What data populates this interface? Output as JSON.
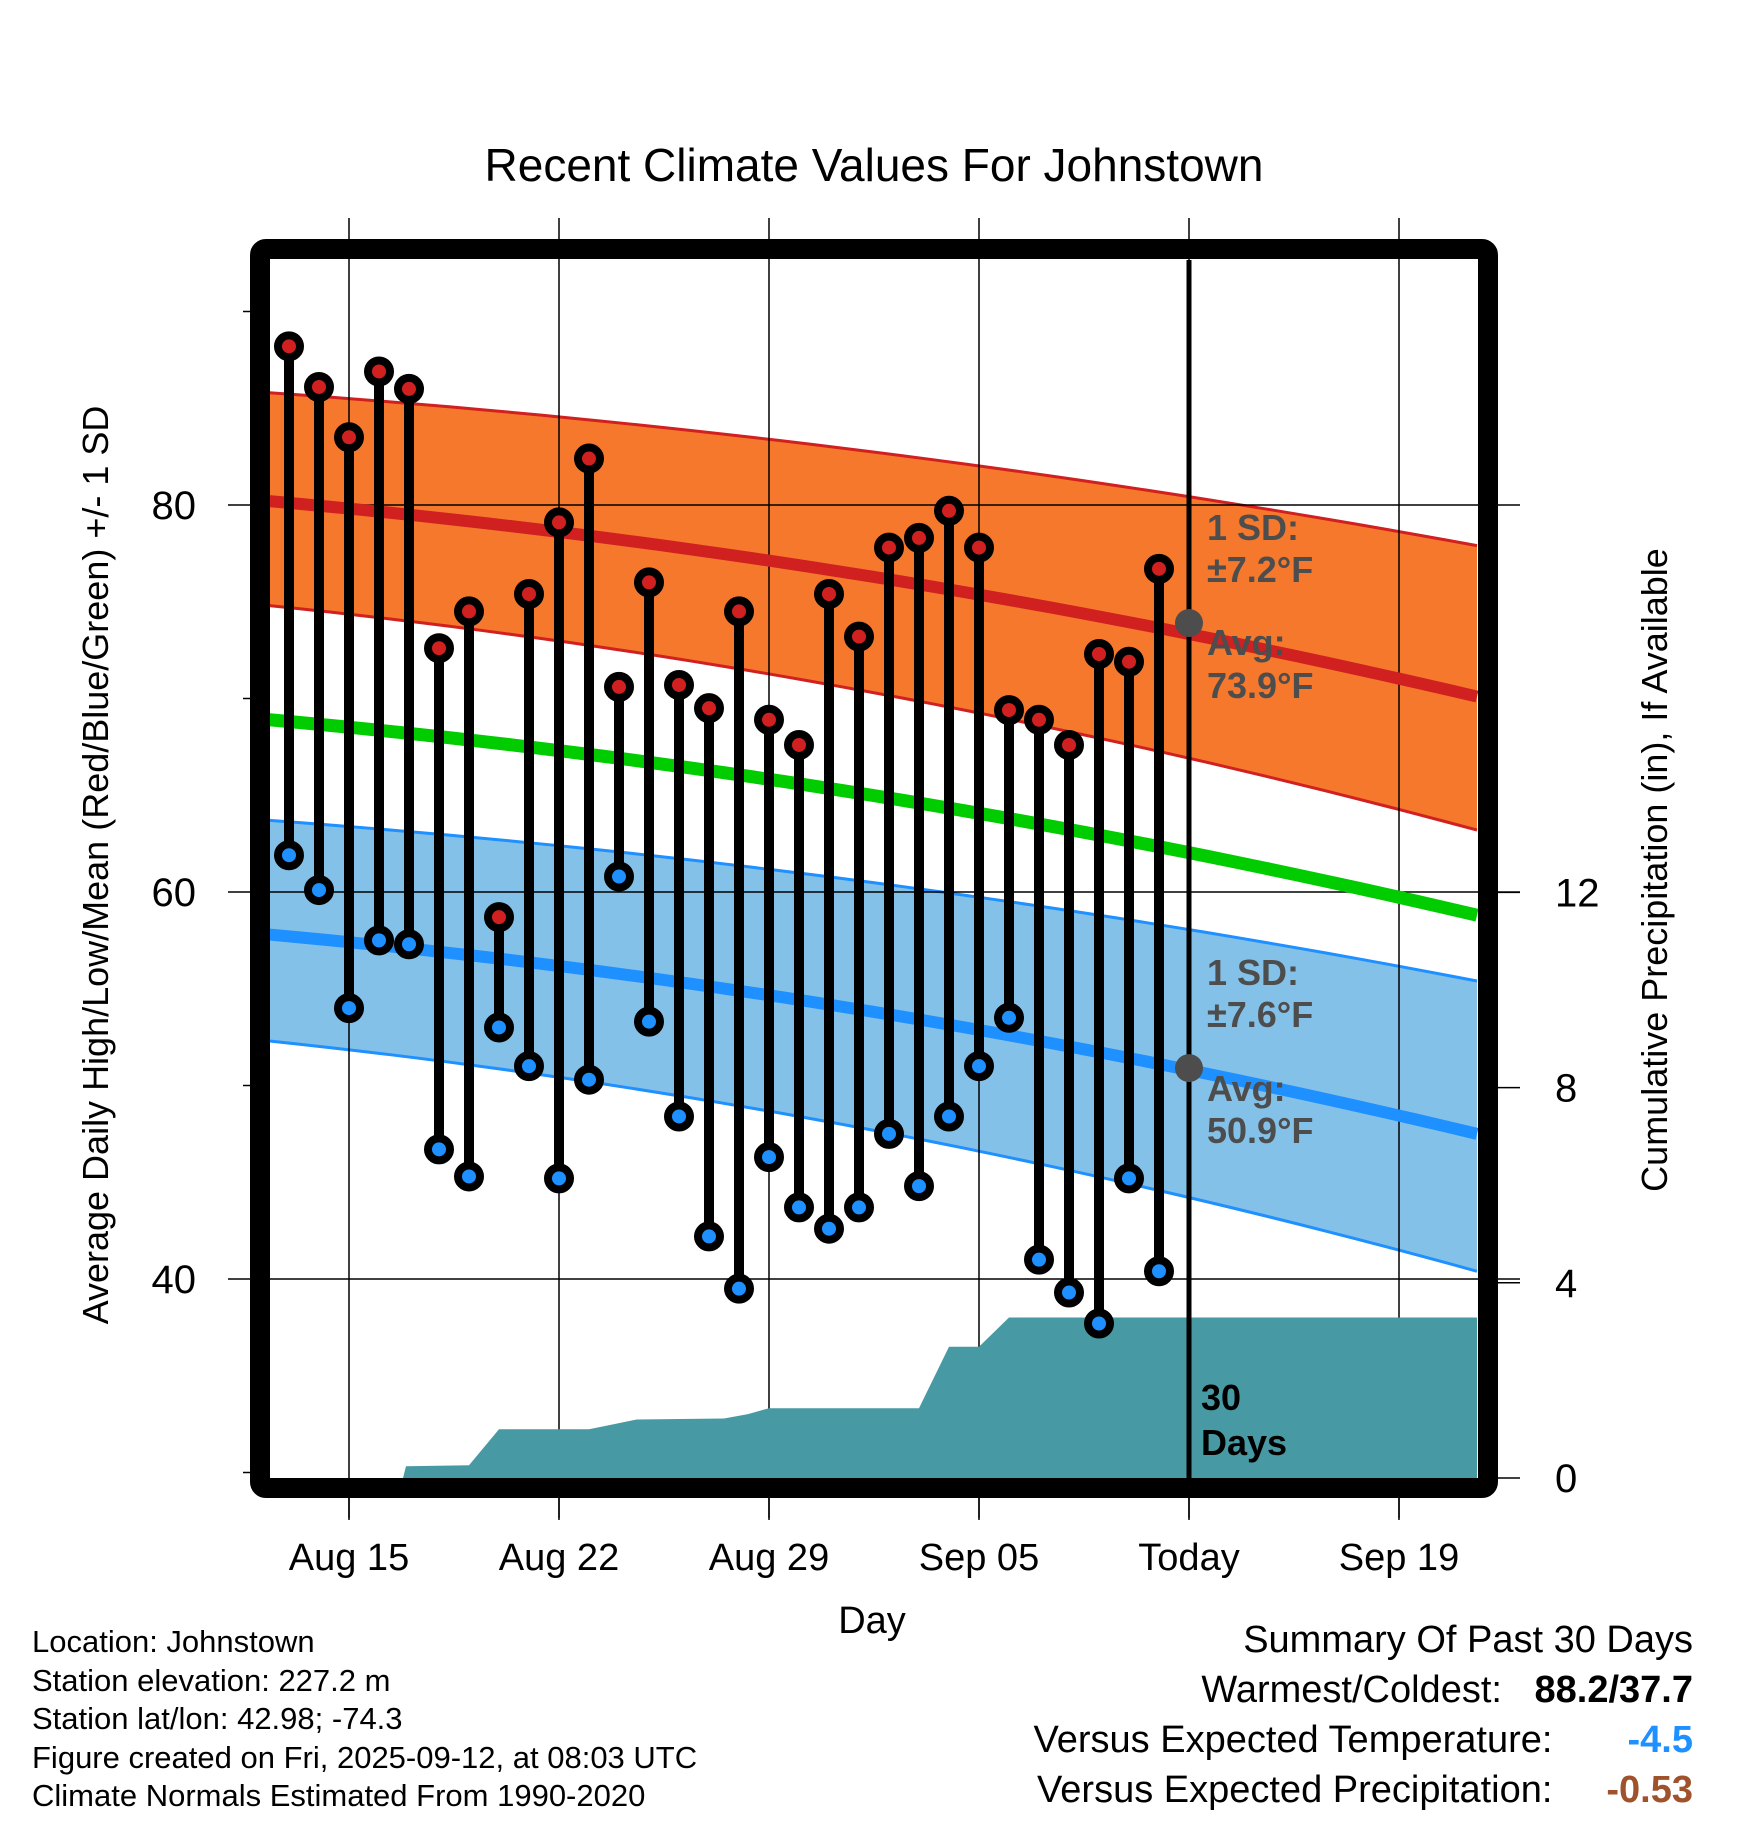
{
  "chart_data": {
    "type": "line",
    "title": "Recent Climate Values For Johnstown",
    "xlabel": "Day",
    "ylabel": "Average Daily High/Low/Mean (Red/Blue/Green) +/- 1 SD",
    "ylabel_right": "Cumulative Precipitation (in), If Available",
    "ylim": [
      29.7,
      92.7
    ],
    "ylim_right": [
      0,
      24.4
    ],
    "y_ticks": [
      40,
      60,
      80
    ],
    "y_minor_ticks": [
      30,
      50,
      70,
      90
    ],
    "y_right_ticks": [
      0,
      4,
      8,
      12
    ],
    "x_ticks": [
      {
        "day": 0,
        "label": "Aug 15"
      },
      {
        "day": 7,
        "label": "Aug 22"
      },
      {
        "day": 14,
        "label": "Aug 29"
      },
      {
        "day": 21,
        "label": "Sep 05"
      },
      {
        "day": 28,
        "label": "Today"
      },
      {
        "day": 35,
        "label": "Sep 19"
      }
    ],
    "x_range_days": [
      -2.65,
      37.6
    ],
    "today_day": 28,
    "grid": true,
    "days": [
      "Aug 13",
      "Aug 14",
      "Aug 15",
      "Aug 16",
      "Aug 17",
      "Aug 18",
      "Aug 19",
      "Aug 20",
      "Aug 21",
      "Aug 22",
      "Aug 23",
      "Aug 24",
      "Aug 25",
      "Aug 26",
      "Aug 27",
      "Aug 28",
      "Aug 29",
      "Aug 30",
      "Aug 31",
      "Sep 01",
      "Sep 02",
      "Sep 03",
      "Sep 04",
      "Sep 05",
      "Sep 06",
      "Sep 07",
      "Sep 08",
      "Sep 09",
      "Sep 10",
      "Sep 11"
    ],
    "day_offsets": [
      -2,
      -1,
      0,
      1,
      2,
      3,
      4,
      5,
      6,
      7,
      8,
      9,
      10,
      11,
      12,
      13,
      14,
      15,
      16,
      17,
      18,
      19,
      20,
      21,
      22,
      23,
      24,
      25,
      26,
      27
    ],
    "series": [
      {
        "name": "Daily High",
        "color": "#d02020",
        "values": [
          88.2,
          86.1,
          83.5,
          86.9,
          86.0,
          72.6,
          74.5,
          58.7,
          75.4,
          79.1,
          82.4,
          70.6,
          76.0,
          70.7,
          69.5,
          74.5,
          68.9,
          67.6,
          75.4,
          73.2,
          77.8,
          78.3,
          79.7,
          77.8,
          69.4,
          68.9,
          67.6,
          72.3,
          71.9,
          76.7
        ]
      },
      {
        "name": "Daily Low",
        "color": "#1e90ff",
        "values": [
          61.9,
          60.1,
          54.0,
          57.5,
          57.3,
          46.7,
          45.3,
          53.0,
          51.0,
          45.2,
          50.3,
          60.8,
          53.3,
          48.4,
          42.2,
          39.5,
          46.3,
          43.7,
          42.6,
          43.7,
          47.5,
          44.8,
          48.4,
          51.0,
          53.5,
          41.0,
          39.3,
          37.7,
          45.2,
          40.4
        ]
      }
    ],
    "normals": {
      "x_days": [
        -2.65,
        37.6
      ],
      "high_avg": {
        "color": "#d02020",
        "values": [
          80.2,
          70.1
        ]
      },
      "high_upper": {
        "values": [
          85.8,
          77.9
        ]
      },
      "high_lower": {
        "values": [
          74.8,
          63.2
        ]
      },
      "high_band_color": "#f5782d",
      "mean": {
        "color": "#00cc00",
        "values": [
          68.9,
          58.8
        ]
      },
      "low_avg": {
        "color": "#1e90ff",
        "values": [
          57.8,
          47.5
        ]
      },
      "low_upper": {
        "values": [
          63.7,
          55.4
        ]
      },
      "low_lower": {
        "values": [
          52.3,
          40.4
        ]
      },
      "low_band_color": "#84c1e8"
    },
    "precipitation": {
      "color": "#4799a3",
      "points": [
        [
          -2.65,
          0
        ],
        [
          1.8,
          0
        ],
        [
          1.9,
          0.24
        ],
        [
          4.0,
          0.26
        ],
        [
          5.0,
          1.0
        ],
        [
          8.0,
          1.0
        ],
        [
          8.8,
          1.1
        ],
        [
          9.6,
          1.2
        ],
        [
          12.5,
          1.22
        ],
        [
          13.3,
          1.31
        ],
        [
          14.0,
          1.43
        ],
        [
          19.0,
          1.43
        ],
        [
          20.0,
          2.69
        ],
        [
          21.0,
          2.69
        ],
        [
          22.0,
          3.29
        ],
        [
          37.6,
          3.29
        ],
        [
          37.6,
          0
        ]
      ]
    },
    "annotations": {
      "high_sd": "1 SD:",
      "high_sd_val": "±7.2°F",
      "high_avg": "Avg:",
      "high_avg_val": "73.9°F",
      "low_sd": "1 SD:",
      "low_sd_val": "±7.6°F",
      "low_avg": "Avg:",
      "low_avg_val": "50.9°F",
      "today_high_avg": 73.9,
      "today_low_avg": 50.9,
      "period_line1": "30",
      "period_line2": "Days",
      "annotation_color": "#4d4d4d"
    }
  },
  "info": {
    "location": "Location: Johnstown",
    "elevation": "Station elevation: 227.2 m",
    "latlon": "Station lat/lon: 42.98; -74.3",
    "created": "Figure created on Fri, 2025-09-12, at 08:03 UTC",
    "normals": "Climate Normals Estimated From 1990-2020"
  },
  "summary": {
    "title": "Summary Of Past 30 Days",
    "warmest_label": "Warmest/Coldest:",
    "warmest_value": "88.2/37.7",
    "temp_label": "Versus Expected Temperature:",
    "temp_value": "-4.5",
    "temp_color": "#1e90ff",
    "precip_label": "Versus Expected Precipitation:",
    "precip_value": "-0.53",
    "precip_color": "#a0522d"
  }
}
